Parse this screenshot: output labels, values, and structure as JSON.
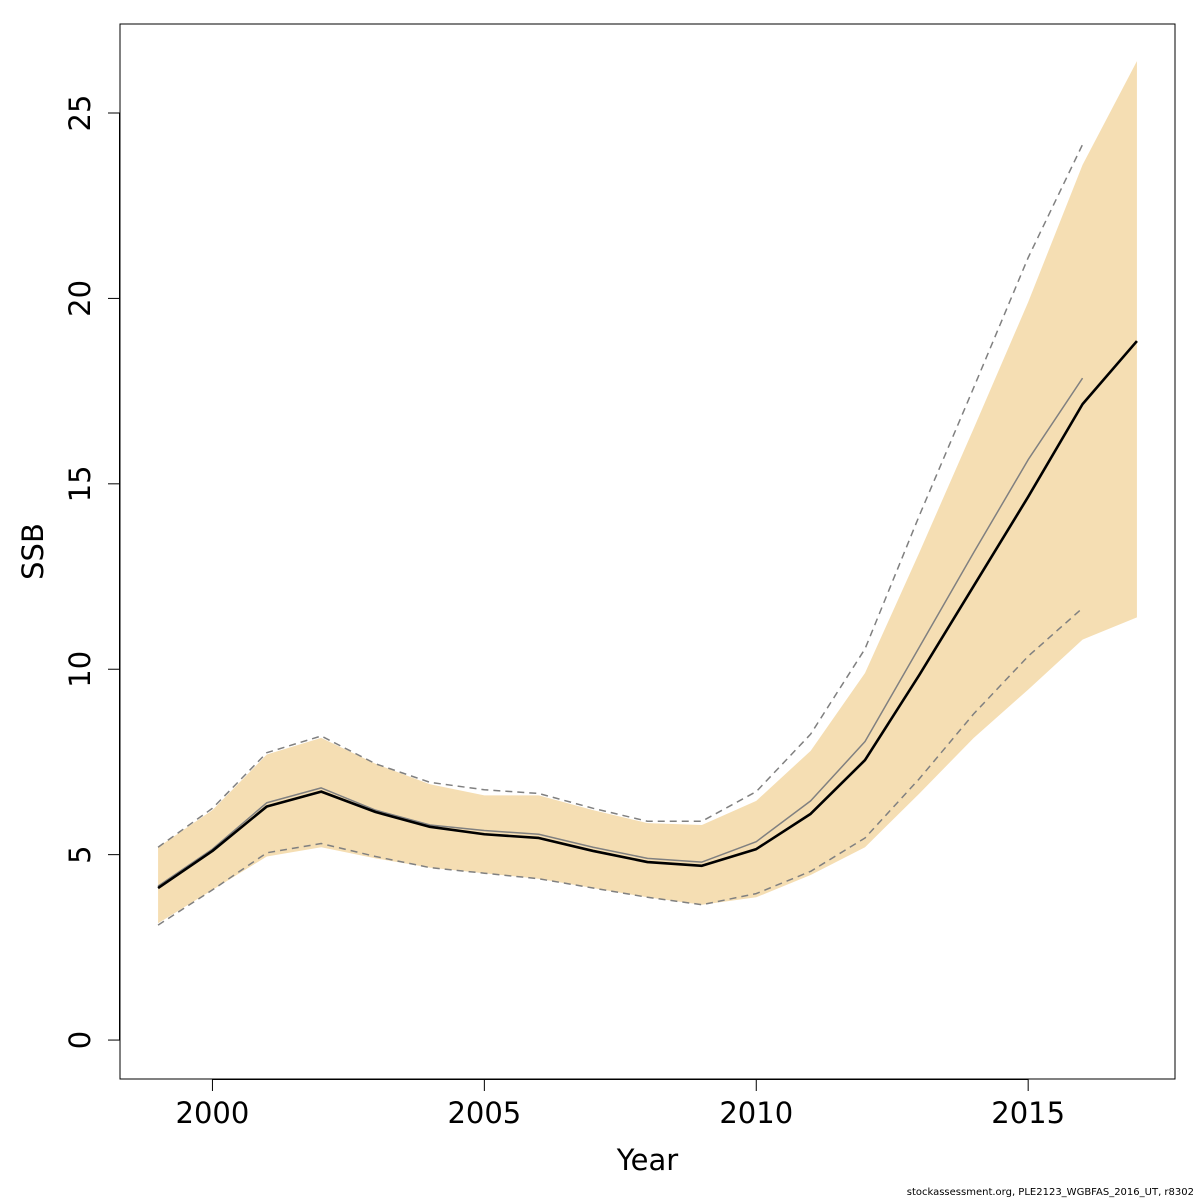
{
  "chart_data": {
    "type": "line",
    "title": "",
    "xlabel": "Year",
    "ylabel": "SSB",
    "xlim": [
      1998.3,
      2017.7
    ],
    "ylim": [
      -1.05,
      27.4
    ],
    "x_ticks": [
      2000,
      2005,
      2010,
      2015
    ],
    "y_ticks": [
      0,
      5,
      10,
      15,
      20,
      25
    ],
    "grid": false,
    "band_color": "#F5DEB3",
    "band": {
      "x": [
        1999,
        2000,
        2001,
        2002,
        2003,
        2004,
        2005,
        2006,
        2007,
        2008,
        2009,
        2010,
        2011,
        2012,
        2013,
        2014,
        2015,
        2016,
        2017
      ],
      "lower": [
        3.15,
        4.05,
        4.95,
        5.2,
        4.9,
        4.65,
        4.5,
        4.35,
        4.1,
        3.85,
        3.65,
        3.85,
        4.45,
        5.2,
        6.65,
        8.15,
        9.45,
        10.8,
        11.4
      ],
      "upper": [
        5.2,
        6.2,
        7.7,
        8.15,
        7.45,
        6.9,
        6.6,
        6.6,
        6.2,
        5.85,
        5.8,
        6.45,
        7.8,
        9.9,
        13.15,
        16.5,
        19.9,
        23.6,
        26.4
      ]
    },
    "series": [
      {
        "line_style": "solid-bold",
        "color": "#000000",
        "x": [
          1999,
          2000,
          2001,
          2002,
          2003,
          2004,
          2005,
          2006,
          2007,
          2008,
          2009,
          2010,
          2011,
          2012,
          2013,
          2014,
          2015,
          2016,
          2017
        ],
        "values": [
          4.1,
          5.1,
          6.3,
          6.7,
          6.15,
          5.75,
          5.55,
          5.45,
          5.1,
          4.8,
          4.7,
          5.15,
          6.1,
          7.55,
          9.85,
          12.25,
          14.65,
          17.15,
          18.85
        ]
      },
      {
        "line_style": "solid-thin",
        "color": "#808080",
        "x": [
          1999,
          2000,
          2001,
          2002,
          2003,
          2004,
          2005,
          2006,
          2007,
          2008,
          2009,
          2010,
          2011,
          2012,
          2013,
          2014,
          2015,
          2016
        ],
        "values": [
          4.15,
          5.15,
          6.4,
          6.8,
          6.2,
          5.8,
          5.65,
          5.55,
          5.2,
          4.9,
          4.8,
          5.35,
          6.45,
          8.05,
          10.6,
          13.15,
          15.65,
          17.85
        ]
      },
      {
        "line_style": "dashed",
        "color": "#808080",
        "x": [
          1999,
          2000,
          2001,
          2002,
          2003,
          2004,
          2005,
          2006,
          2007,
          2008,
          2009,
          2010,
          2011,
          2012,
          2013,
          2014,
          2015,
          2016
        ],
        "values": [
          5.2,
          6.25,
          7.75,
          8.2,
          7.45,
          6.95,
          6.75,
          6.65,
          6.25,
          5.9,
          5.9,
          6.7,
          8.25,
          10.55,
          14.15,
          17.6,
          21.1,
          24.15
        ]
      },
      {
        "line_style": "dashed",
        "color": "#808080",
        "x": [
          1999,
          2000,
          2001,
          2002,
          2003,
          2004,
          2005,
          2006,
          2007,
          2008,
          2009,
          2010,
          2011,
          2012,
          2013,
          2014,
          2015,
          2016
        ],
        "values": [
          3.1,
          4.05,
          5.05,
          5.3,
          4.95,
          4.65,
          4.5,
          4.35,
          4.1,
          3.85,
          3.65,
          3.95,
          4.55,
          5.45,
          7.05,
          8.8,
          10.35,
          11.65
        ]
      }
    ]
  },
  "footer": {
    "credit": "stockassessment.org, PLE2123_WGBFAS_2016_UT, r8302"
  }
}
